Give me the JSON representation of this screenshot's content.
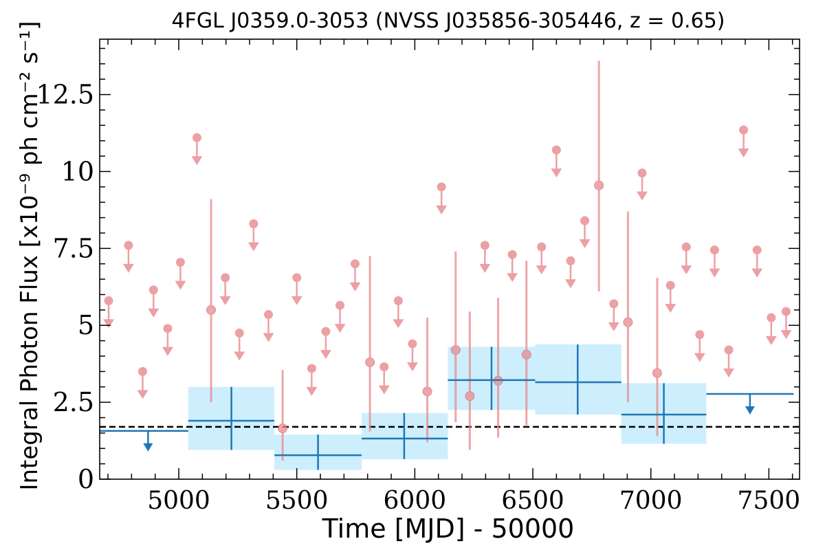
{
  "chart_data": {
    "type": "scatter",
    "title": "4FGL J0359.0-3053 (NVSS J035856-305446, z = 0.65)",
    "xlabel": "Time [MJD] - 50000",
    "ylabel": "Integral Photon Flux [x10⁻⁹ ph cm⁻² s⁻¹]",
    "xlim": [
      4665,
      7630
    ],
    "ylim": [
      0,
      14.3
    ],
    "x_ticks": [
      5000,
      5500,
      6000,
      6500,
      7000,
      7500
    ],
    "y_ticks": [
      0,
      2.5,
      5,
      7.5,
      10,
      12.5
    ],
    "y_tick_labels": [
      "0",
      "2.5",
      "5",
      "7.5",
      "10",
      "12.5"
    ],
    "grid": false,
    "reference_line": {
      "y": 1.7,
      "style": "dashed",
      "color": "#000000"
    },
    "series": [
      {
        "kind": "short_bins_upper_limits",
        "color": "#e8898e",
        "points": [
          [
            4703,
            5.8
          ],
          [
            4787,
            7.6
          ],
          [
            4847,
            3.5
          ],
          [
            4893,
            6.15
          ],
          [
            4953,
            4.9
          ],
          [
            5007,
            7.05
          ],
          [
            5077,
            11.1
          ],
          [
            5197,
            6.55
          ],
          [
            5257,
            4.75
          ],
          [
            5317,
            8.3
          ],
          [
            5380,
            5.35
          ],
          [
            5500,
            6.55
          ],
          [
            5563,
            3.6
          ],
          [
            5623,
            4.8
          ],
          [
            5683,
            5.65
          ],
          [
            5747,
            7.0
          ],
          [
            5870,
            3.65
          ],
          [
            5930,
            5.8
          ],
          [
            5990,
            4.4
          ],
          [
            6113,
            9.5
          ],
          [
            6297,
            7.6
          ],
          [
            6413,
            7.3
          ],
          [
            6537,
            7.55
          ],
          [
            6600,
            10.7
          ],
          [
            6660,
            7.1
          ],
          [
            6720,
            8.4
          ],
          [
            6843,
            5.7
          ],
          [
            6963,
            9.95
          ],
          [
            7083,
            6.3
          ],
          [
            7150,
            7.55
          ],
          [
            7207,
            4.7
          ],
          [
            7270,
            7.45
          ],
          [
            7330,
            4.2
          ],
          [
            7393,
            11.35
          ],
          [
            7450,
            7.45
          ],
          [
            7510,
            5.25
          ],
          [
            7573,
            5.45
          ]
        ]
      },
      {
        "kind": "short_bins_detections",
        "color": "#e8898e",
        "points": [
          {
            "x": 5137,
            "y": 5.5,
            "lo": 2.5,
            "hi": 9.1
          },
          {
            "x": 5440,
            "y": 1.65,
            "lo": 0.6,
            "hi": 3.55
          },
          {
            "x": 5810,
            "y": 3.8,
            "lo": 1.55,
            "hi": 7.25
          },
          {
            "x": 6053,
            "y": 2.85,
            "lo": 1.2,
            "hi": 5.25
          },
          {
            "x": 6173,
            "y": 4.2,
            "lo": 1.85,
            "hi": 7.4
          },
          {
            "x": 6233,
            "y": 2.7,
            "lo": 0.95,
            "hi": 5.45
          },
          {
            "x": 6353,
            "y": 3.2,
            "lo": 1.35,
            "hi": 5.9
          },
          {
            "x": 6473,
            "y": 4.05,
            "lo": 1.75,
            "hi": 7.1
          },
          {
            "x": 6780,
            "y": 9.55,
            "lo": 6.1,
            "hi": 13.6
          },
          {
            "x": 6903,
            "y": 5.1,
            "lo": 2.5,
            "hi": 8.7
          },
          {
            "x": 7027,
            "y": 3.45,
            "lo": 1.4,
            "hi": 6.55
          }
        ]
      },
      {
        "kind": "long_bins_detections",
        "color": "#1f77b4",
        "band_color": "#cdeefd",
        "points": [
          {
            "x": 5223,
            "x0": 5040,
            "x1": 5405,
            "y": 1.9,
            "lo": 0.95,
            "hi": 3.0
          },
          {
            "x": 5590,
            "x0": 5405,
            "x1": 5775,
            "y": 0.78,
            "lo": 0.3,
            "hi": 1.45
          },
          {
            "x": 5955,
            "x0": 5775,
            "x1": 6140,
            "y": 1.32,
            "lo": 0.65,
            "hi": 2.15
          },
          {
            "x": 6325,
            "x0": 6140,
            "x1": 6510,
            "y": 3.22,
            "lo": 2.25,
            "hi": 4.3
          },
          {
            "x": 6690,
            "x0": 6510,
            "x1": 6875,
            "y": 3.15,
            "lo": 2.1,
            "hi": 4.38
          },
          {
            "x": 7055,
            "x0": 6875,
            "x1": 7235,
            "y": 2.1,
            "lo": 1.15,
            "hi": 3.12
          }
        ]
      },
      {
        "kind": "long_bins_upper_limits",
        "color": "#1f77b4",
        "points": [
          {
            "x": 4870,
            "x0": 4665,
            "x1": 5040,
            "y": 1.57
          },
          {
            "x": 7420,
            "x0": 7235,
            "x1": 7605,
            "y": 2.77
          }
        ]
      }
    ]
  }
}
